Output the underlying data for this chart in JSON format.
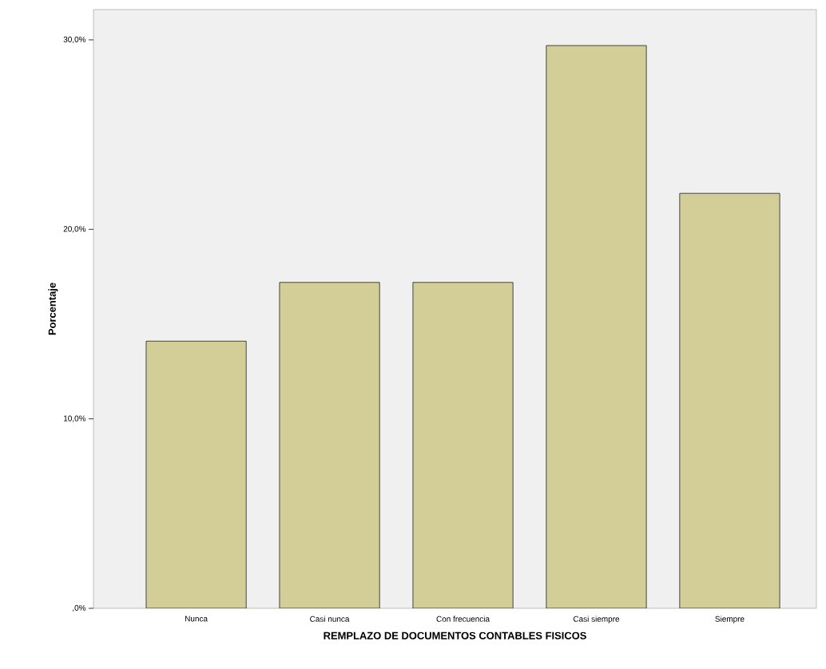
{
  "chart_data": {
    "type": "bar",
    "xlabel": "REMPLAZO DE DOCUMENTOS CONTABLES FISICOS",
    "ylabel": "Porcentaje",
    "categories": [
      "Nunca",
      "Casi nunca",
      "Con frecuencia",
      "Casi siempre",
      "Siempre"
    ],
    "values": [
      14.1,
      17.2,
      17.2,
      29.7,
      21.9
    ],
    "color": "#d3ce97",
    "ylim": [
      0,
      31.6
    ],
    "yticks": [
      {
        "value": 0,
        "label": ",0%"
      },
      {
        "value": 10,
        "label": "10,0%"
      },
      {
        "value": 20,
        "label": "20,0%"
      },
      {
        "value": 30,
        "label": "30,0%"
      }
    ]
  }
}
